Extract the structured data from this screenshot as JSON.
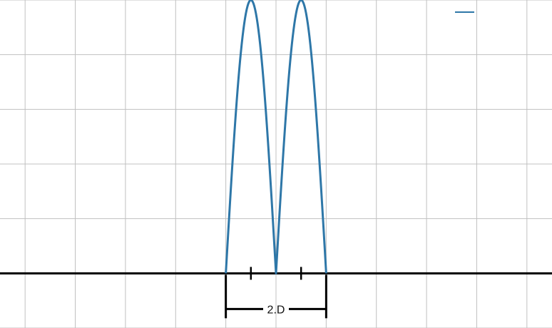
{
  "chart_data": {
    "type": "line",
    "title": "",
    "xlabel": "",
    "ylabel": "",
    "grid": true,
    "xlim": [
      -5.5,
      5.5
    ],
    "ylim": [
      -1.0,
      5.0
    ],
    "x_axis_at": 0,
    "series": [
      {
        "color": "#2e77a8",
        "x": [
          -1.0,
          -0.5,
          0.0,
          0.5,
          1.0
        ],
        "y": [
          0.0,
          5.0,
          0.0,
          5.0,
          0.0
        ],
        "shape": "double-hump"
      }
    ],
    "axis_ticks": [
      -0.5,
      0.5
    ],
    "annotations": [
      {
        "text": "2.D",
        "from": -1.0,
        "to": 1.0
      }
    ],
    "legend_color": "#2e77a8"
  }
}
